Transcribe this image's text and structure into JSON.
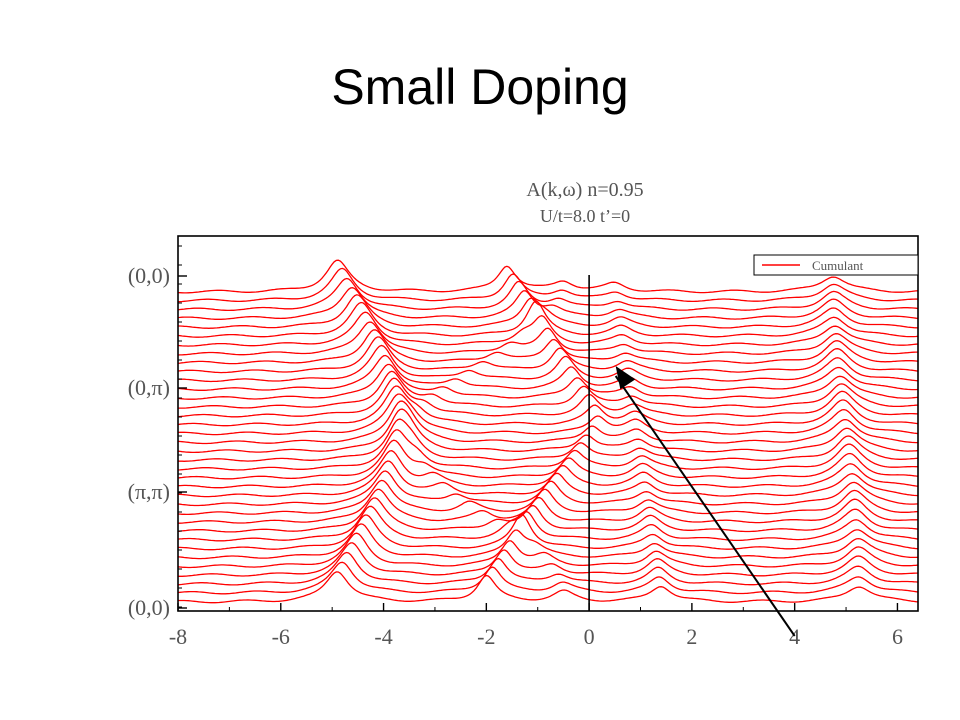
{
  "slide": {
    "title": "Small Doping"
  },
  "chart_data": {
    "type": "line",
    "title": "A(k,ω) n=0.95",
    "subtitle": "U/t=8.0 t’=0",
    "xlabel": "",
    "ylabel": "",
    "xlim": [
      -8,
      6.4
    ],
    "x_ticks": [
      -8,
      -6,
      -4,
      -2,
      0,
      2,
      4,
      6
    ],
    "x_tick_labels": [
      "-8",
      "-6",
      "-4",
      "-2",
      "0",
      "2",
      "4",
      "6"
    ],
    "y_tick_labels": [
      "(0,0)",
      "(0,π)",
      "(π,π)",
      "(0,0)"
    ],
    "k_path": [
      "(0,0)",
      "(0,π)",
      "(π,π)",
      "(0,0)"
    ],
    "curve_count": 36,
    "vertical_line_x": 0,
    "legend": {
      "position": "top-right",
      "entries": [
        "Cumulant"
      ]
    },
    "series": [
      {
        "name": "Cumulant",
        "color": "#ff0000"
      }
    ],
    "annotation": {
      "type": "arrow",
      "from_x": 4.0,
      "to_x": 0.4,
      "color": "#000000"
    }
  }
}
